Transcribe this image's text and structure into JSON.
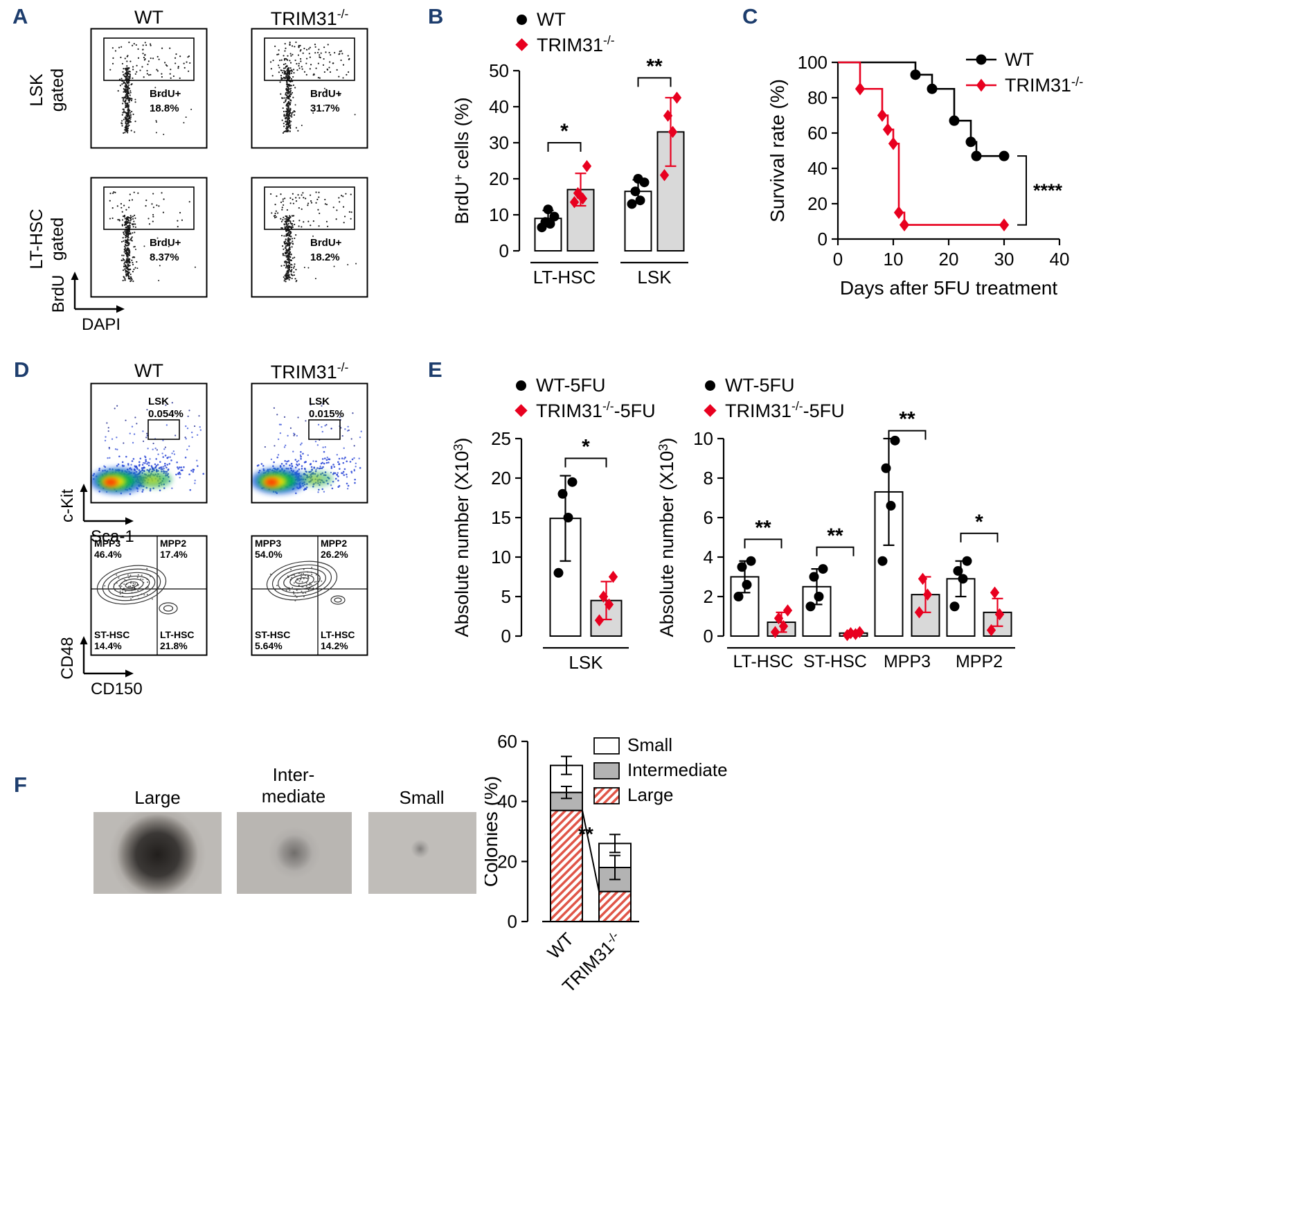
{
  "panel_a": {
    "label": "A",
    "col_headers": [
      "WT",
      "TRIM31^{-/-}"
    ],
    "row_labels": [
      "LSK\ngated",
      "LT-HSC\ngated"
    ],
    "y_axis_label": "BrdU",
    "x_axis_label": "DAPI",
    "plots": [
      {
        "gate_label": "BrdU+",
        "percent": "18.8%",
        "frac": 0.188
      },
      {
        "gate_label": "BrdU+",
        "percent": "31.7%",
        "frac": 0.317
      },
      {
        "gate_label": "BrdU+",
        "percent": "8.37%",
        "frac": 0.084
      },
      {
        "gate_label": "BrdU+",
        "percent": "18.2%",
        "frac": 0.182
      }
    ]
  },
  "panel_b": {
    "label": "B"
  },
  "panel_c": {
    "label": "C"
  },
  "panel_d": {
    "label": "D",
    "col_headers": [
      "WT",
      "TRIM31^{-/-}"
    ],
    "top_y_axis": "c-Kit",
    "top_x_axis": "Sca-1",
    "bottom_y_axis": "CD48",
    "bottom_x_axis": "CD150",
    "top_plots": [
      {
        "gate_label": "LSK",
        "percent": "0.054%"
      },
      {
        "gate_label": "LSK",
        "percent": "0.015%"
      }
    ],
    "bottom_plots": [
      {
        "quads": [
          {
            "name": "MPP3",
            "pct": "46.4%"
          },
          {
            "name": "MPP2",
            "pct": "17.4%"
          },
          {
            "name": "ST-HSC",
            "pct": "14.4%"
          },
          {
            "name": "LT-HSC",
            "pct": "21.8%"
          }
        ]
      },
      {
        "quads": [
          {
            "name": "MPP3",
            "pct": "54.0%"
          },
          {
            "name": "MPP2",
            "pct": "26.2%"
          },
          {
            "name": "ST-HSC",
            "pct": "5.64%"
          },
          {
            "name": "LT-HSC",
            "pct": "14.2%"
          }
        ]
      }
    ]
  },
  "panel_e": {
    "label": "E"
  },
  "panel_f": {
    "label": "F",
    "image_labels": [
      "Large",
      "Inter-\nmediate",
      "Small"
    ]
  },
  "chart_data": [
    {
      "id": "brdu-bar",
      "type": "bar",
      "ylabel": "BrdU^{+} cells (%)",
      "ylim": [
        0,
        50
      ],
      "yticks": [
        0,
        10,
        20,
        30,
        40,
        50
      ],
      "categories": [
        "LT-HSC",
        "LSK"
      ],
      "series": [
        {
          "name": "WT",
          "marker": "circle",
          "color": "#000000",
          "fill": "#ffffff",
          "means": [
            9,
            16.5
          ],
          "sd": [
            2.2,
            3.2
          ],
          "points": [
            [
              6.5,
              7.5,
              8,
              9.5,
              11.5
            ],
            [
              13,
              14,
              16.5,
              19,
              20
            ]
          ]
        },
        {
          "name": "TRIM31^{-/-}",
          "marker": "diamond",
          "color": "#e8001f",
          "fill": "#d9d9d9",
          "means": [
            17,
            33
          ],
          "sd": [
            4.5,
            9.5
          ],
          "points": [
            [
              13.5,
              14.5,
              16,
              23.5
            ],
            [
              21,
              33,
              37.5,
              42.5
            ]
          ]
        }
      ],
      "significance": [
        {
          "category": 0,
          "label": "*",
          "y": 30
        },
        {
          "category": 1,
          "label": "**",
          "y": 48
        }
      ]
    },
    {
      "id": "survival",
      "type": "line",
      "xlabel": "Days after 5FU treatment",
      "ylabel": "Survival rate (%)",
      "xlim": [
        0,
        40
      ],
      "ylim": [
        0,
        100
      ],
      "xticks": [
        0,
        10,
        20,
        30,
        40
      ],
      "yticks": [
        0,
        20,
        40,
        60,
        80,
        100
      ],
      "series": [
        {
          "name": "WT",
          "color": "#000000",
          "marker": "circle",
          "steps": [
            [
              0,
              100
            ],
            [
              14,
              93
            ],
            [
              17,
              85
            ],
            [
              21,
              67
            ],
            [
              24,
              55
            ],
            [
              25,
              47
            ],
            [
              30,
              47
            ]
          ]
        },
        {
          "name": "TRIM31^{-/-}",
          "color": "#e8001f",
          "marker": "diamond",
          "steps": [
            [
              0,
              100
            ],
            [
              4,
              85
            ],
            [
              8,
              70
            ],
            [
              9,
              62
            ],
            [
              10,
              54
            ],
            [
              11,
              15
            ],
            [
              12,
              8
            ],
            [
              30,
              8
            ]
          ]
        }
      ],
      "annotation": {
        "label": "****"
      }
    },
    {
      "id": "lsk-abs",
      "type": "bar",
      "ylabel": "Absolute number (X10^{3})",
      "ylim": [
        0,
        25
      ],
      "yticks": [
        0,
        5,
        10,
        15,
        20,
        25
      ],
      "categories": [
        "LSK"
      ],
      "series": [
        {
          "name": "WT-5FU",
          "marker": "circle",
          "color": "#000000",
          "fill": "#ffffff",
          "means": [
            14.9
          ],
          "sd": [
            5.4
          ],
          "points": [
            [
              8,
              15,
              18,
              19.5
            ]
          ]
        },
        {
          "name": "TRIM31^{-/-}-5FU",
          "marker": "diamond",
          "color": "#e8001f",
          "fill": "#d9d9d9",
          "means": [
            4.5
          ],
          "sd": [
            2.4
          ],
          "points": [
            [
              2,
              4,
              5,
              7.5
            ]
          ]
        }
      ],
      "significance": [
        {
          "category": 0,
          "label": "*",
          "y": 22.5
        }
      ]
    },
    {
      "id": "subset-abs",
      "type": "bar",
      "ylabel": "Absolute number (X10^{3})",
      "ylim": [
        0,
        10
      ],
      "yticks": [
        0,
        2,
        4,
        6,
        8,
        10
      ],
      "categories": [
        "LT-HSC",
        "ST-HSC",
        "MPP3",
        "MPP2"
      ],
      "series": [
        {
          "name": "WT-5FU",
          "marker": "circle",
          "color": "#000000",
          "fill": "#ffffff",
          "means": [
            3.0,
            2.5,
            7.3,
            2.9
          ],
          "sd": [
            0.8,
            0.9,
            2.7,
            0.9
          ],
          "points": [
            [
              2.0,
              2.6,
              3.5,
              3.8
            ],
            [
              1.5,
              2.0,
              3.0,
              3.4
            ],
            [
              3.8,
              6.6,
              8.5,
              9.9
            ],
            [
              1.5,
              2.9,
              3.3,
              3.8
            ]
          ]
        },
        {
          "name": "TRIM31^{-/-}-5FU",
          "marker": "diamond",
          "color": "#e8001f",
          "fill": "#d9d9d9",
          "means": [
            0.7,
            0.15,
            2.1,
            1.2
          ],
          "sd": [
            0.5,
            0.1,
            0.9,
            0.7
          ],
          "points": [
            [
              0.2,
              0.5,
              0.9,
              1.3
            ],
            [
              0.05,
              0.1,
              0.15,
              0.2
            ],
            [
              1.2,
              2.1,
              2.9
            ],
            [
              0.3,
              1.1,
              2.2
            ]
          ]
        }
      ],
      "significance": [
        {
          "category": 0,
          "label": "**",
          "y": 4.9
        },
        {
          "category": 1,
          "label": "**",
          "y": 4.5
        },
        {
          "category": 2,
          "label": "**",
          "y": 10.4
        },
        {
          "category": 3,
          "label": "*",
          "y": 5.2
        }
      ]
    },
    {
      "id": "colonies",
      "type": "stacked_bar",
      "ylabel": "Colonies (%)",
      "ylim": [
        0,
        60
      ],
      "yticks": [
        0,
        20,
        40,
        60
      ],
      "categories": [
        "WT",
        "TRIM31^{-/-}"
      ],
      "segments": [
        {
          "name": "Large",
          "fill": "hatch",
          "values": [
            37,
            10
          ]
        },
        {
          "name": "Intermediate",
          "fill": "#b3b3b3",
          "values": [
            6,
            8
          ]
        },
        {
          "name": "Small",
          "fill": "#ffffff",
          "values": [
            9,
            8
          ]
        }
      ],
      "errors": {
        "total": [
          3,
          3
        ],
        "intermediate_top": [
          2,
          4
        ]
      },
      "significance": {
        "label": "**"
      }
    }
  ]
}
